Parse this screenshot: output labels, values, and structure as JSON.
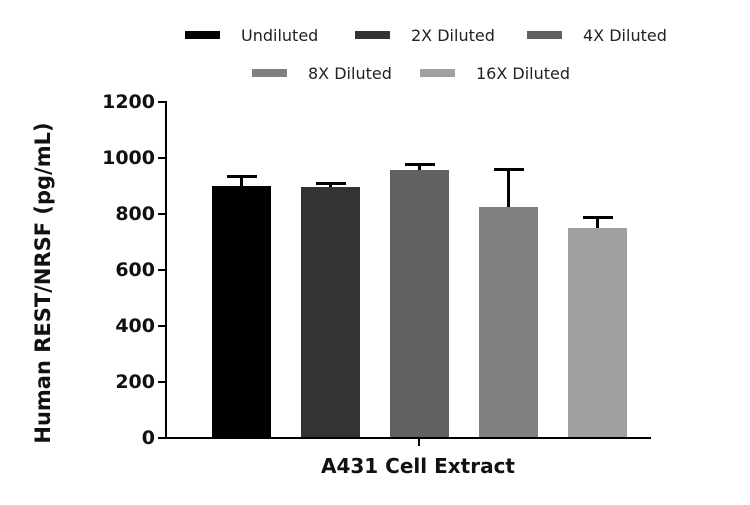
{
  "chart_data": {
    "type": "bar",
    "title": "",
    "xlabel": "A431 Cell Extract",
    "ylabel": "Human REST/NRSF (pg/mL)",
    "ylim": [
      0,
      1200
    ],
    "yticks": [
      "0",
      "200",
      "400",
      "600",
      "800",
      "1000",
      "1200"
    ],
    "grid": false,
    "legend_position": "top",
    "categories": [
      "A431 Cell Extract"
    ],
    "series": [
      {
        "name": "Undiluted",
        "values": [
          899
        ],
        "error": [
          34
        ],
        "color": "#000000"
      },
      {
        "name": "2X Diluted",
        "values": [
          895
        ],
        "error": [
          14
        ],
        "color": "#333333"
      },
      {
        "name": "4X Diluted",
        "values": [
          956
        ],
        "error": [
          21
        ],
        "color": "#616161"
      },
      {
        "name": "8X Diluted",
        "values": [
          824
        ],
        "error": [
          137
        ],
        "color": "#808080"
      },
      {
        "name": "16X Diluted",
        "values": [
          749
        ],
        "error": [
          39
        ],
        "color": "#a0a0a3"
      }
    ]
  },
  "legend": [
    {
      "label": "Undiluted",
      "color": "#000000"
    },
    {
      "label": "2X Diluted",
      "color": "#333333"
    },
    {
      "label": "4X Diluted",
      "color": "#616161"
    },
    {
      "label": "8X Diluted",
      "color": "#808080"
    },
    {
      "label": "16X Diluted",
      "color": "#a0a0a3"
    }
  ],
  "axes": {
    "xlabel": "A431 Cell Extract",
    "ylabel": "Human REST/NRSF (pg/mL)",
    "yticks": [
      "0",
      "200",
      "400",
      "600",
      "800",
      "1000",
      "1200"
    ]
  }
}
